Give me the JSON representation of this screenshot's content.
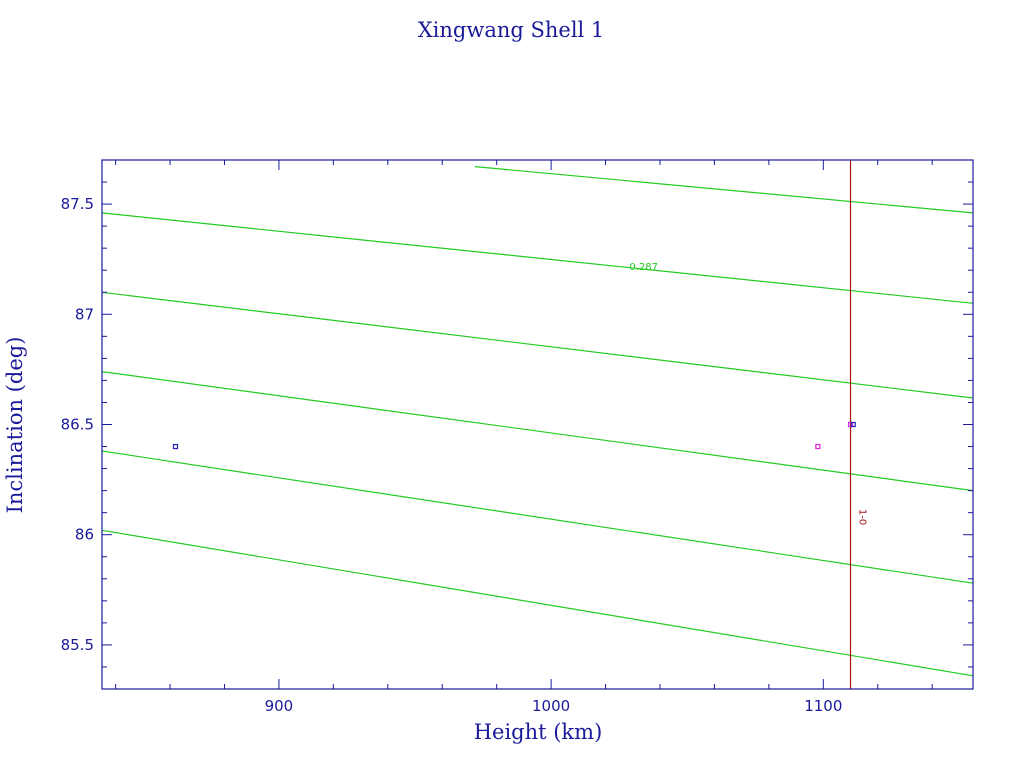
{
  "chart_data": {
    "type": "line",
    "title": "Xingwang Shell 1",
    "xlabel": "Height (km)",
    "ylabel": "Inclination (deg)",
    "xlim": [
      835,
      1155
    ],
    "ylim": [
      85.3,
      87.7
    ],
    "x_ticks": [
      {
        "value": 900,
        "label": "900"
      },
      {
        "value": 1000,
        "label": "1000"
      },
      {
        "value": 1100,
        "label": "1100"
      }
    ],
    "y_ticks": [
      {
        "value": 85.5,
        "label": "85.5"
      },
      {
        "value": 86,
        "label": "86"
      },
      {
        "value": 86.5,
        "label": "86.5"
      },
      {
        "value": 87,
        "label": "87"
      },
      {
        "value": 87.5,
        "label": "87.5"
      }
    ],
    "grid": false,
    "contours": [
      {
        "color": "#22cc22",
        "points": [
          [
            972,
            87.67
          ],
          [
            1155,
            87.46
          ]
        ]
      },
      {
        "color": "#22cc22",
        "points": [
          [
            835,
            87.46
          ],
          [
            1155,
            87.05
          ]
        ]
      },
      {
        "color": "#22cc22",
        "points": [
          [
            835,
            87.1
          ],
          [
            1155,
            86.62
          ]
        ]
      },
      {
        "color": "#22cc22",
        "points": [
          [
            835,
            86.74
          ],
          [
            1155,
            86.2
          ]
        ]
      },
      {
        "color": "#22cc22",
        "points": [
          [
            835,
            86.38
          ],
          [
            1155,
            85.78
          ]
        ]
      },
      {
        "color": "#22cc22",
        "points": [
          [
            835,
            86.02
          ],
          [
            1155,
            85.36
          ]
        ]
      }
    ],
    "contour_labels": [
      {
        "text": "0.287",
        "x": 1034,
        "y": 87.22,
        "color": "#22cc22"
      }
    ],
    "reference_lines": [
      {
        "orientation": "vertical",
        "x": 1110,
        "color": "#aa1111",
        "label": "1-0",
        "label_y": 86.08
      }
    ],
    "markers": [
      {
        "x": 862,
        "y": 86.4,
        "color": "#2222bb"
      },
      {
        "x": 1098,
        "y": 86.4,
        "color": "#dd22dd"
      },
      {
        "x": 1110,
        "y": 86.5,
        "color": "#dd22dd"
      },
      {
        "x": 1111,
        "y": 86.5,
        "color": "#2222bb"
      }
    ],
    "axis_color": "#1a1a9a"
  }
}
